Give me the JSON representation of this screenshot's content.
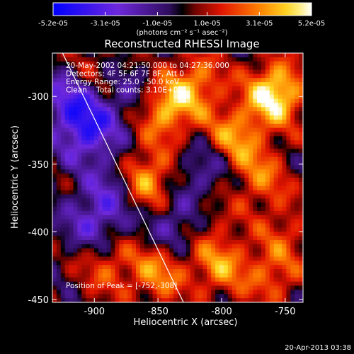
{
  "chart_data": {
    "type": "heatmap",
    "title": "Reconstructed RHESSI Image",
    "xlabel": "Heliocentric X (arcsec)",
    "ylabel": "Heliocentric Y (arcsec)",
    "xlim": [
      -933,
      -736
    ],
    "ylim": [
      -452,
      -268
    ],
    "x_ticks": [
      -900,
      -850,
      -800,
      -750
    ],
    "y_ticks": [
      -300,
      -350,
      -400,
      -450
    ],
    "colorbar": {
      "range": [
        -5.2e-05,
        5.2e-05
      ],
      "tick_values": [
        -5.2e-05,
        -3.1e-05,
        -1e-05,
        1e-05,
        3.1e-05,
        5.2e-05
      ],
      "tick_labels": [
        "-5.2e-05",
        "-3.1e-05",
        "-1.0e-05",
        "1.0e-05",
        "3.1e-05",
        "5.2e-05"
      ],
      "unit_label": "(photons cm⁻² s⁻¹ asec⁻²)"
    },
    "info_lines": [
      "20-May-2002 04:21:50.000 to 04:27:36.000",
      "Detectors: 4F 5F 6F 7F 8F, Att 0",
      "Energy Range: 25.0 - 50.0 keV",
      "Clean    Total counts: 3.10E+03"
    ],
    "peak_label": "Position of Peak = [-752,-308]",
    "limb_line": {
      "from": [
        -925,
        -268
      ],
      "to": [
        -830,
        -452
      ]
    },
    "sources": [
      {
        "x": -758,
        "y": -298,
        "value": 5.2e-05
      },
      {
        "x": -862,
        "y": -362,
        "value": 4.8e-05
      },
      {
        "x": -845,
        "y": -310,
        "value": 3.9e-05
      },
      {
        "x": -790,
        "y": -330,
        "value": 3.3e-05
      },
      {
        "x": -820,
        "y": -290,
        "value": 3e-05
      },
      {
        "x": -770,
        "y": -360,
        "value": 2.5e-05
      },
      {
        "x": -850,
        "y": -430,
        "value": 3e-05
      },
      {
        "x": -802,
        "y": -425,
        "value": 3.1e-05
      },
      {
        "x": -760,
        "y": -432,
        "value": 2.4e-05
      },
      {
        "x": -905,
        "y": -285,
        "value": 1.8e-05
      },
      {
        "x": -890,
        "y": -425,
        "value": 2.2e-05
      },
      {
        "x": -750,
        "y": -398,
        "value": 1.6e-05
      },
      {
        "x": -812,
        "y": -390,
        "value": 1.4e-05
      },
      {
        "x": -905,
        "y": -325,
        "value": -3.6e-05
      },
      {
        "x": -918,
        "y": -300,
        "value": -3.2e-05
      },
      {
        "x": -878,
        "y": -365,
        "value": -2.8e-05
      },
      {
        "x": -835,
        "y": -395,
        "value": -2.4e-05
      },
      {
        "x": -812,
        "y": -355,
        "value": -2e-05
      },
      {
        "x": -900,
        "y": -392,
        "value": -2.6e-05
      },
      {
        "x": -870,
        "y": -300,
        "value": -1.6e-05
      }
    ]
  },
  "footer": {
    "timestamp": "20-Apr-2013 03:38"
  }
}
